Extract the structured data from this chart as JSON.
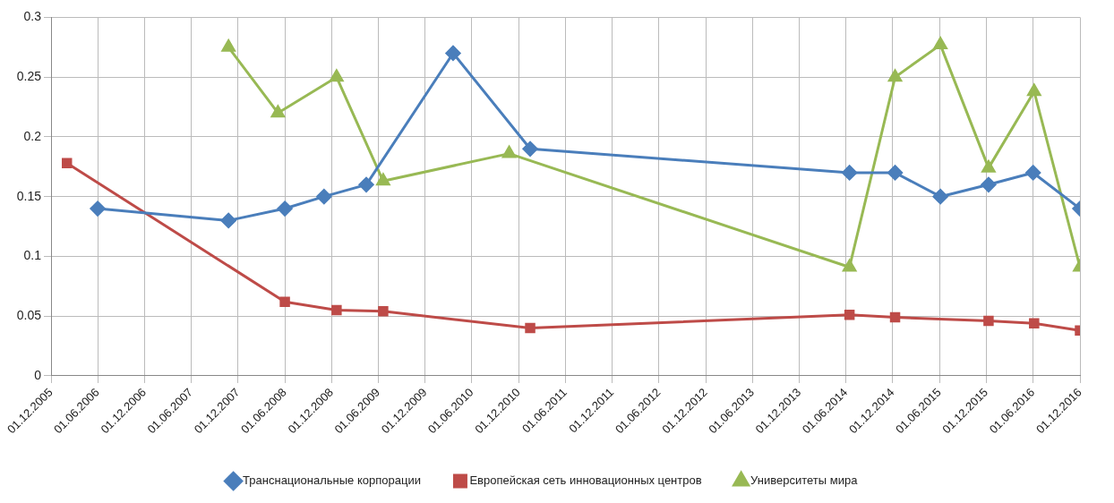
{
  "chart_data": {
    "type": "line",
    "xlim": [
      "2005-12-01",
      "2016-12-01"
    ],
    "xticks": [
      {
        "value": "2005-12-01",
        "label": "01.12.2005"
      },
      {
        "value": "2006-06-01",
        "label": "01.06.2006"
      },
      {
        "value": "2006-12-01",
        "label": "01.12.2006"
      },
      {
        "value": "2007-06-01",
        "label": "01.06.2007"
      },
      {
        "value": "2007-12-01",
        "label": "01.12.2007"
      },
      {
        "value": "2008-06-01",
        "label": "01.06.2008"
      },
      {
        "value": "2008-12-01",
        "label": "01.12.2008"
      },
      {
        "value": "2009-06-01",
        "label": "01.06.2009"
      },
      {
        "value": "2009-12-01",
        "label": "01.12.2009"
      },
      {
        "value": "2010-06-01",
        "label": "01.06.2010"
      },
      {
        "value": "2010-12-01",
        "label": "01.12.2010"
      },
      {
        "value": "2011-06-01",
        "label": "01.06.2011"
      },
      {
        "value": "2011-12-01",
        "label": "01.12.2011"
      },
      {
        "value": "2012-06-01",
        "label": "01.06.2012"
      },
      {
        "value": "2012-12-01",
        "label": "01.12.2012"
      },
      {
        "value": "2013-06-01",
        "label": "01.06.2013"
      },
      {
        "value": "2013-12-01",
        "label": "01.12.2013"
      },
      {
        "value": "2014-06-01",
        "label": "01.06.2014"
      },
      {
        "value": "2014-12-01",
        "label": "01.12.2014"
      },
      {
        "value": "2015-06-01",
        "label": "01.06.2015"
      },
      {
        "value": "2015-12-01",
        "label": "01.12.2015"
      },
      {
        "value": "2016-06-01",
        "label": "01.06.2016"
      },
      {
        "value": "2016-12-01",
        "label": "01.12.2016"
      }
    ],
    "ylim": [
      0,
      0.3
    ],
    "yticks": [
      0,
      0.05,
      0.1,
      0.15,
      0.2,
      0.25,
      0.3
    ],
    "grid": true,
    "legend": "bottom",
    "line_style": "solid",
    "series": [
      {
        "name": "Транснациональные корпорации",
        "color": "#4a7ebb",
        "marker": "diamond",
        "x": [
          "2006-06-01",
          "2007-10-25",
          "2008-06-01",
          "2008-11-01",
          "2009-04-15",
          "2010-03-20",
          "2011-01-15",
          "2014-06-15",
          "2014-12-10",
          "2015-06-05",
          "2015-12-10",
          "2016-06-01",
          "2016-12-01"
        ],
        "values": [
          0.14,
          0.13,
          0.14,
          0.15,
          0.16,
          0.27,
          0.19,
          0.17,
          0.17,
          0.15,
          0.16,
          0.17,
          0.14
        ]
      },
      {
        "name": "Европейская сеть инновационных центров",
        "color": "#be4b48",
        "marker": "square",
        "x": [
          "2006-02-01",
          "2008-06-01",
          "2008-12-20",
          "2009-06-20",
          "2011-01-15",
          "2014-06-15",
          "2014-12-10",
          "2015-12-10",
          "2016-06-05",
          "2016-12-01"
        ],
        "values": [
          0.178,
          0.062,
          0.055,
          0.054,
          0.04,
          0.051,
          0.049,
          0.046,
          0.044,
          0.038
        ]
      },
      {
        "name": "Университеты мира",
        "color": "#98b954",
        "marker": "triangle",
        "x": [
          "2007-10-25",
          "2008-05-05",
          "2008-12-20",
          "2009-06-20",
          "2010-10-25",
          "2014-06-15",
          "2014-12-10",
          "2015-06-05",
          "2015-12-10",
          "2016-06-05",
          "2016-12-01"
        ],
        "values": [
          0.275,
          0.22,
          0.25,
          0.163,
          0.186,
          0.091,
          0.25,
          0.277,
          0.174,
          0.238,
          0.091
        ]
      }
    ]
  }
}
